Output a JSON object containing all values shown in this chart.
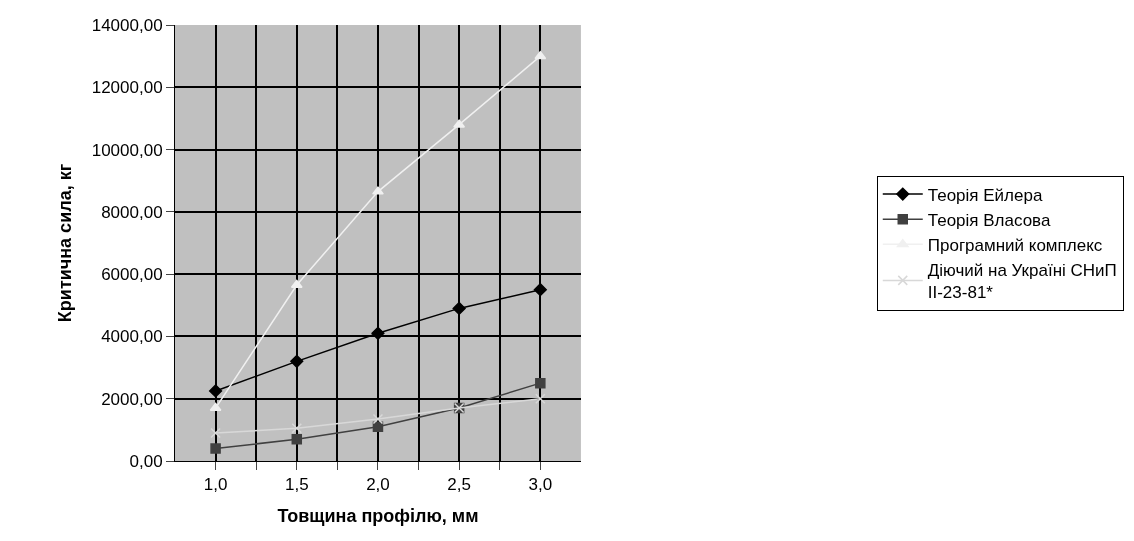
{
  "chart_data": {
    "type": "line",
    "xlabel": "Товщина профілю, мм",
    "ylabel": "Критична сила, кг",
    "categories": [
      "1,0",
      "1,5",
      "2,0",
      "2,5",
      "3,0"
    ],
    "series": [
      {
        "name": "Теорія Ейлера",
        "color": "#000000",
        "marker": "diamond",
        "values": [
          2250,
          3200,
          4100,
          4900,
          5500
        ]
      },
      {
        "name": "Теорія Власова",
        "color": "#404040",
        "marker": "square",
        "values": [
          400,
          700,
          1100,
          1700,
          2500
        ]
      },
      {
        "name": "Програмний комплекс",
        "color": "#f0f0f0",
        "marker": "triangle",
        "values": [
          1700,
          5650,
          8650,
          10800,
          13000
        ]
      },
      {
        "name": "Діючий на Україні СНиП II-23-81*",
        "color": "#d8d8d8",
        "marker": "cross",
        "values": [
          900,
          1050,
          1350,
          1700,
          2000
        ]
      }
    ],
    "ylim": [
      0,
      14000
    ],
    "yticks": [
      {
        "value": 0,
        "label": "0,00"
      },
      {
        "value": 2000,
        "label": "2000,00"
      },
      {
        "value": 4000,
        "label": "4000,00"
      },
      {
        "value": 6000,
        "label": "6000,00"
      },
      {
        "value": 8000,
        "label": "8000,00"
      },
      {
        "value": 10000,
        "label": "10000,00"
      },
      {
        "value": 12000,
        "label": "12000,00"
      },
      {
        "value": 14000,
        "label": "14000,00"
      }
    ],
    "grid": true,
    "legend": "right",
    "line_style": "solid"
  }
}
